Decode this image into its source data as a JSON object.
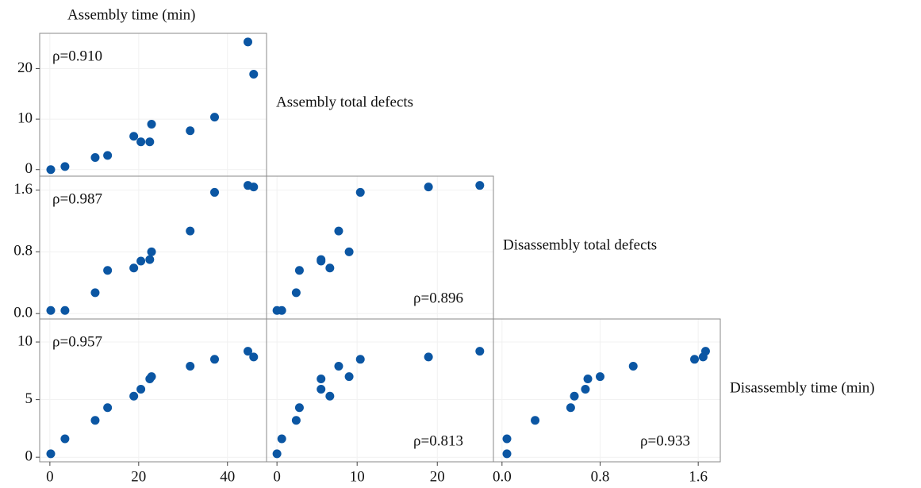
{
  "chart_data": {
    "type": "scatter_matrix",
    "color": "#0b56a3",
    "grid": true,
    "variables": [
      {
        "name": "Assembly time (min)",
        "values": [
          0.2,
          3.4,
          10.2,
          13.0,
          18.9,
          20.5,
          22.5,
          22.9,
          31.6,
          37.1,
          44.6,
          45.9
        ],
        "lim": [
          -2.3,
          48.8
        ],
        "ticks": [
          0,
          20,
          40
        ]
      },
      {
        "name": "Assembly total defects",
        "values": [
          0,
          0.6,
          2.4,
          2.8,
          6.6,
          5.5,
          5.5,
          9.0,
          7.7,
          10.4,
          25.3,
          18.9
        ],
        "lim": [
          -1.3,
          27
        ],
        "ticks": [
          0,
          10,
          20
        ]
      },
      {
        "name": "Disassembly total defects",
        "values": [
          0.04,
          0.04,
          0.27,
          0.56,
          0.59,
          0.68,
          0.7,
          0.8,
          1.07,
          1.57,
          1.66,
          1.64
        ],
        "lim": [
          -0.07,
          1.78
        ],
        "ticks": [
          {
            "value": 0,
            "label": "0.0"
          },
          0.8,
          1.6
        ]
      },
      {
        "name": "Disassembly time (min)",
        "values": [
          0.3,
          1.6,
          3.2,
          4.3,
          5.3,
          5.9,
          6.8,
          7.0,
          7.9,
          8.5,
          9.2,
          8.7
        ],
        "lim": [
          -0.4,
          12.0
        ],
        "ticks": [
          0,
          5,
          10
        ]
      }
    ],
    "correlations": {
      "values": [
        [
          0.91
        ],
        [
          0.987,
          0.896
        ],
        [
          0.957,
          0.813,
          0.933
        ]
      ],
      "value_labels": [
        [
          "ρ=0.910"
        ],
        [
          "ρ=0.987",
          "ρ=0.896"
        ],
        [
          "ρ=0.957",
          "ρ=0.813",
          "ρ=0.933"
        ]
      ]
    }
  }
}
